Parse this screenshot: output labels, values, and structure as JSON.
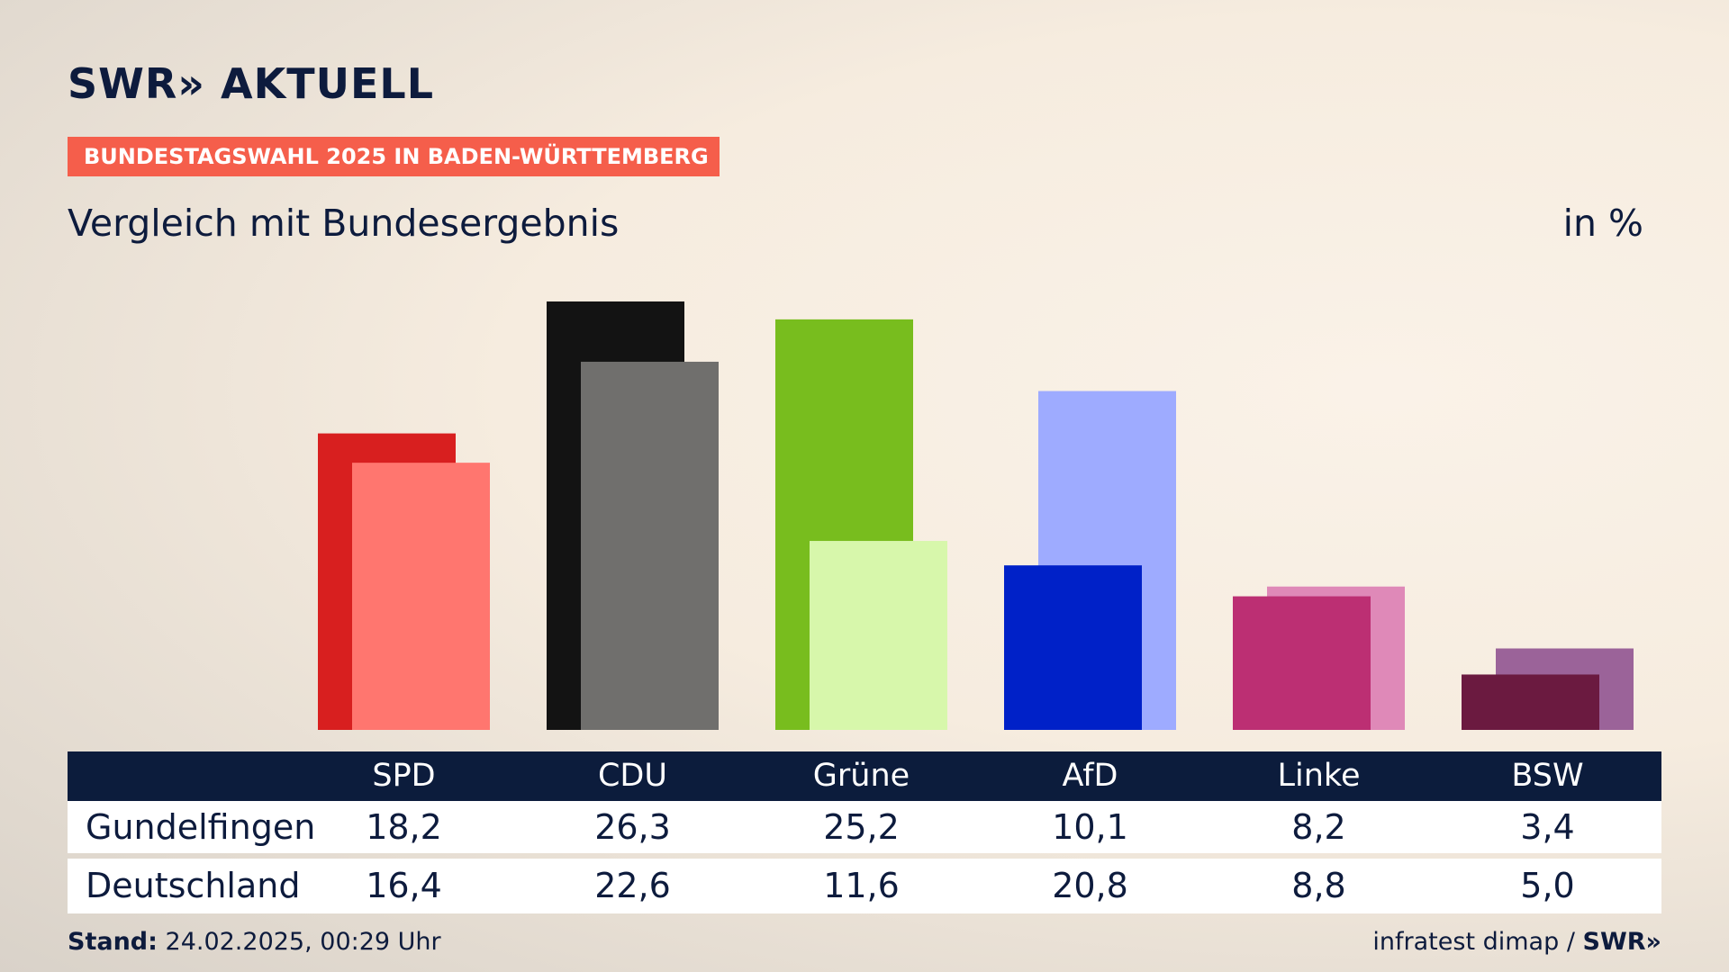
{
  "header": {
    "logo": "SWR» AKTUELL",
    "banner": "BUNDESTAGSWAHL 2025 IN BADEN-WÜRTTEMBERG",
    "subtitle": "Vergleich mit Bundesergebnis",
    "unit": "in %"
  },
  "chart_data": {
    "type": "bar",
    "categories": [
      "SPD",
      "CDU",
      "Grüne",
      "AfD",
      "Linke",
      "BSW"
    ],
    "series": [
      {
        "name": "Gundelfingen",
        "values": [
          18.2,
          26.3,
          25.2,
          10.1,
          8.2,
          3.4
        ]
      },
      {
        "name": "Deutschland",
        "values": [
          16.4,
          22.6,
          11.6,
          20.8,
          8.8,
          5.0
        ]
      }
    ],
    "colors": {
      "Gundelfingen": [
        "#d81f1f",
        "#131313",
        "#78bd1e",
        "#0021c8",
        "#bc2f73",
        "#6b1a40"
      ],
      "Deutschland": [
        "#ff766f",
        "#706f6d",
        "#d7f7ab",
        "#9eabff",
        "#df89b8",
        "#9b6399"
      ]
    },
    "ylim": [
      0,
      30
    ],
    "grid": false
  },
  "table": {
    "row_labels": [
      "Gundelfingen",
      "Deutschland"
    ],
    "rows": [
      [
        "18,2",
        "26,3",
        "25,2",
        "10,1",
        "8,2",
        "3,4"
      ],
      [
        "16,4",
        "22,6",
        "11,6",
        "20,8",
        "8,8",
        "5,0"
      ]
    ]
  },
  "footer": {
    "stand_label": "Stand:",
    "stand_value": "24.02.2025, 00:29 Uhr",
    "source": "infratest dimap /",
    "brand": "SWR»"
  }
}
